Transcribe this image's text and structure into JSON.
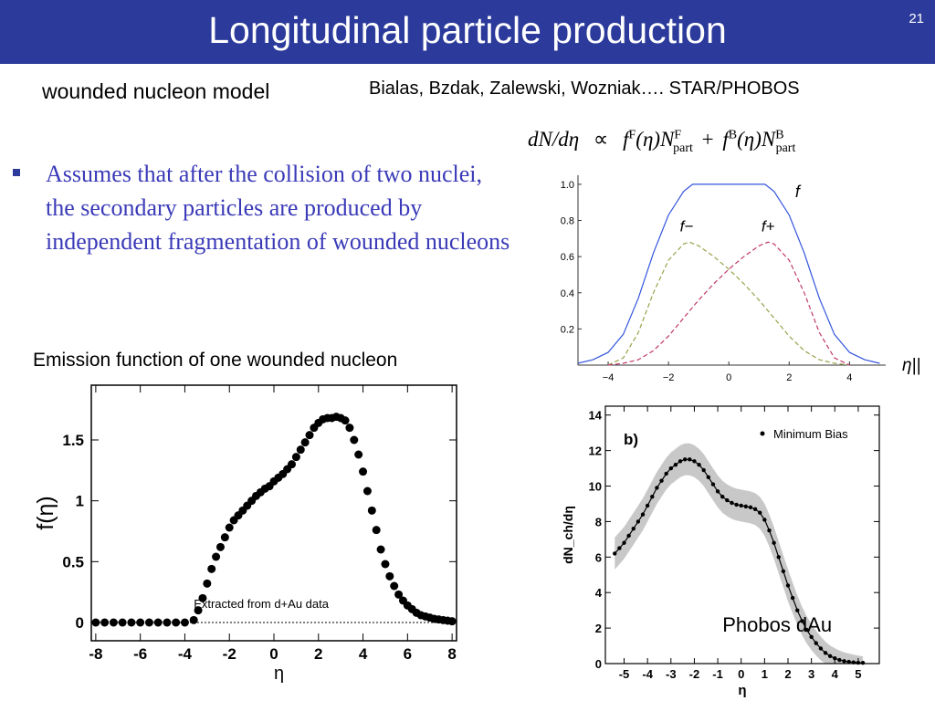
{
  "slide": {
    "title": "Longitudinal particle production",
    "page_number": "21",
    "subtitle_left": "wounded nucleon model",
    "subtitle_right": "Bialas, Bzdak, Zalewski, Wozniak…. STAR/PHOBOS",
    "bullet": "Assumes that after the collision of two nuclei, the secondary particles are produced by independent fragmentation of wounded nucleons",
    "caption_emission": "Emission function of one wounded nucleon"
  },
  "formula": {
    "lhs": "dN/dη",
    "prop": "∝",
    "term1_f": "f",
    "term1_sup": "F",
    "term1_arg": "(η)N",
    "term1_Nsup": "F",
    "term1_Nsub": "part",
    "plus": "+",
    "term2_f": "f",
    "term2_sup": "B",
    "term2_arg": "(η)N",
    "term2_Nsup": "B",
    "term2_Nsub": "part"
  },
  "chart_data": [
    {
      "type": "line",
      "panel": "top-right",
      "xlabel": "η||",
      "xlim": [
        -5,
        5.2
      ],
      "ylim": [
        0,
        1.05
      ],
      "xticks": [
        "−4",
        "−2",
        "0",
        "2",
        "4"
      ],
      "yticks": [
        "0.2",
        "0.4",
        "0.6",
        "0.8",
        "1.0"
      ],
      "series": [
        {
          "name": "f",
          "style": "solid",
          "color": "#3355dd",
          "x": [
            -5,
            -4.5,
            -4,
            -3.5,
            -3,
            -2.5,
            -2,
            -1.5,
            -1.2,
            -1,
            0,
            1,
            1.2,
            1.5,
            2,
            2.5,
            3,
            3.5,
            4,
            4.5,
            5
          ],
          "y": [
            0.01,
            0.03,
            0.07,
            0.17,
            0.37,
            0.62,
            0.83,
            0.96,
            1.0,
            1.0,
            1.0,
            1.0,
            1.0,
            0.96,
            0.83,
            0.62,
            0.37,
            0.17,
            0.07,
            0.03,
            0.01
          ]
        },
        {
          "name": "f−",
          "style": "dashed",
          "color": "#9aa04a",
          "x": [
            -4,
            -3.5,
            -3,
            -2.5,
            -2,
            -1.5,
            -1.3,
            -1,
            -0.5,
            0,
            0.5,
            1,
            1.5,
            2,
            2.5,
            3,
            3.5,
            4
          ],
          "y": [
            0.0,
            0.04,
            0.18,
            0.4,
            0.58,
            0.67,
            0.68,
            0.66,
            0.6,
            0.53,
            0.45,
            0.36,
            0.26,
            0.16,
            0.08,
            0.03,
            0.01,
            0.0
          ]
        },
        {
          "name": "f+",
          "style": "dashed",
          "color": "#c0396b",
          "x": [
            -4,
            -3.5,
            -3,
            -2.5,
            -2,
            -1.5,
            -1,
            -0.5,
            0,
            0.5,
            1,
            1.3,
            1.5,
            2,
            2.5,
            3,
            3.5,
            4
          ],
          "y": [
            0.0,
            0.01,
            0.03,
            0.08,
            0.16,
            0.26,
            0.36,
            0.45,
            0.53,
            0.6,
            0.66,
            0.68,
            0.67,
            0.58,
            0.4,
            0.18,
            0.04,
            0.0
          ]
        }
      ],
      "labels": [
        "f",
        "f−",
        "f+"
      ]
    },
    {
      "type": "scatter",
      "panel": "bottom-left",
      "xlabel": "η",
      "ylabel": "f(η)",
      "xlim": [
        -8.2,
        8.2
      ],
      "ylim": [
        -0.15,
        1.95
      ],
      "xticks": [
        "-8",
        "-6",
        "-4",
        "-2",
        "0",
        "2",
        "4",
        "6",
        "8"
      ],
      "yticks": [
        "0",
        "0.5",
        "1",
        "1.5"
      ],
      "annotation": "Extracted from d+Au data",
      "x": [
        -8,
        -7.6,
        -7.2,
        -6.8,
        -6.4,
        -6,
        -5.6,
        -5.2,
        -4.8,
        -4.4,
        -4.0,
        -3.6,
        -3.4,
        -3.2,
        -3.0,
        -2.8,
        -2.6,
        -2.4,
        -2.2,
        -2.0,
        -1.8,
        -1.6,
        -1.4,
        -1.2,
        -1.0,
        -0.8,
        -0.6,
        -0.4,
        -0.2,
        0.0,
        0.2,
        0.4,
        0.6,
        0.8,
        1.0,
        1.2,
        1.4,
        1.6,
        1.8,
        2.0,
        2.2,
        2.4,
        2.6,
        2.8,
        3.0,
        3.2,
        3.4,
        3.6,
        3.8,
        4.0,
        4.2,
        4.4,
        4.6,
        4.8,
        5.0,
        5.2,
        5.4,
        5.6,
        5.8,
        6.0,
        6.2,
        6.4,
        6.6,
        6.8,
        7.0,
        7.2,
        7.4,
        7.6,
        7.8,
        8.0
      ],
      "y": [
        0,
        0,
        0,
        0,
        0,
        0,
        0,
        0,
        0,
        0,
        0,
        0.02,
        0.1,
        0.2,
        0.32,
        0.44,
        0.54,
        0.62,
        0.7,
        0.78,
        0.84,
        0.88,
        0.92,
        0.96,
        1.0,
        1.04,
        1.07,
        1.1,
        1.12,
        1.16,
        1.19,
        1.22,
        1.26,
        1.3,
        1.36,
        1.42,
        1.48,
        1.54,
        1.6,
        1.64,
        1.67,
        1.68,
        1.68,
        1.69,
        1.68,
        1.66,
        1.6,
        1.5,
        1.38,
        1.24,
        1.08,
        0.92,
        0.76,
        0.6,
        0.48,
        0.38,
        0.3,
        0.23,
        0.18,
        0.14,
        0.11,
        0.08,
        0.06,
        0.05,
        0.04,
        0.03,
        0.025,
        0.02,
        0.015,
        0.01
      ]
    },
    {
      "type": "line",
      "panel": "bottom-right",
      "xlabel": "η",
      "ylabel": "dN_ch/dη",
      "panel_label": "b)",
      "legend": "Minimum Bias",
      "annotation": "Phobos dAu",
      "xlim": [
        -5.8,
        5.9
      ],
      "ylim": [
        0,
        14.5
      ],
      "xticks": [
        "-5",
        "-4",
        "-3",
        "-2",
        "-1",
        "0",
        "1",
        "2",
        "3",
        "4",
        "5"
      ],
      "yticks": [
        "0",
        "2",
        "4",
        "6",
        "8",
        "10",
        "12",
        "14"
      ],
      "series": [
        {
          "name": "Minimum Bias",
          "x": [
            -5.4,
            -5.2,
            -5.0,
            -4.8,
            -4.6,
            -4.4,
            -4.2,
            -4.0,
            -3.8,
            -3.6,
            -3.4,
            -3.2,
            -3.0,
            -2.8,
            -2.6,
            -2.4,
            -2.2,
            -2.0,
            -1.8,
            -1.6,
            -1.4,
            -1.2,
            -1.0,
            -0.8,
            -0.6,
            -0.4,
            -0.2,
            0.0,
            0.2,
            0.4,
            0.6,
            0.8,
            1.0,
            1.2,
            1.4,
            1.6,
            1.8,
            2.0,
            2.2,
            2.4,
            2.6,
            2.8,
            3.0,
            3.2,
            3.4,
            3.6,
            3.8,
            4.0,
            4.2,
            4.4,
            4.6,
            4.8,
            5.0,
            5.2
          ],
          "y": [
            6.2,
            6.5,
            6.8,
            7.2,
            7.6,
            8.0,
            8.4,
            8.9,
            9.4,
            9.9,
            10.3,
            10.7,
            11.0,
            11.2,
            11.4,
            11.5,
            11.5,
            11.4,
            11.2,
            10.9,
            10.5,
            10.1,
            9.7,
            9.4,
            9.2,
            9.05,
            8.95,
            8.9,
            8.85,
            8.8,
            8.7,
            8.5,
            8.1,
            7.5,
            6.8,
            6.0,
            5.2,
            4.4,
            3.7,
            3.0,
            2.4,
            1.9,
            1.5,
            1.15,
            0.85,
            0.6,
            0.42,
            0.3,
            0.2,
            0.14,
            0.1,
            0.07,
            0.05,
            0.04
          ]
        }
      ]
    }
  ]
}
